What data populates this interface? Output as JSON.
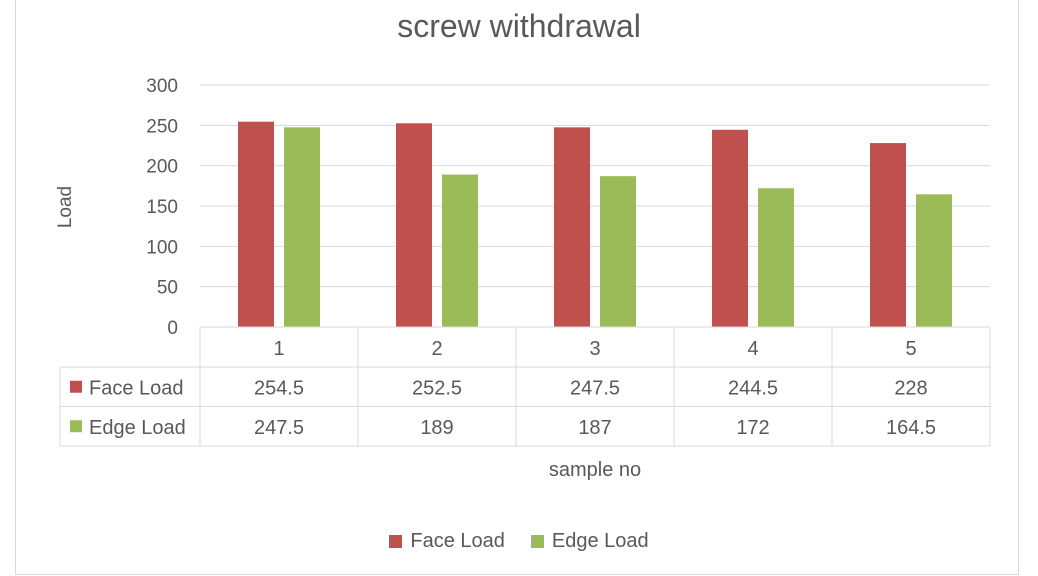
{
  "chart_data": {
    "type": "bar",
    "title": "screw withdrawal",
    "xlabel": "sample no",
    "ylabel": "Load",
    "categories": [
      "1",
      "2",
      "3",
      "4",
      "5"
    ],
    "ylim": [
      0,
      300
    ],
    "yticks": [
      0,
      50,
      100,
      150,
      200,
      250,
      300
    ],
    "grid": true,
    "legend": "bottom",
    "data_table": true,
    "series": [
      {
        "name": "Face Load",
        "color": "#c0504d",
        "values": [
          254.5,
          252.5,
          247.5,
          244.5,
          228
        ],
        "labels": [
          "254.5",
          "252.5",
          "247.5",
          "244.5",
          "228"
        ]
      },
      {
        "name": "Edge Load",
        "color": "#9bbb59",
        "values": [
          247.5,
          189,
          187,
          172,
          164.5
        ],
        "labels": [
          "247.5",
          "189",
          "187",
          "172",
          "164.5"
        ]
      }
    ]
  }
}
